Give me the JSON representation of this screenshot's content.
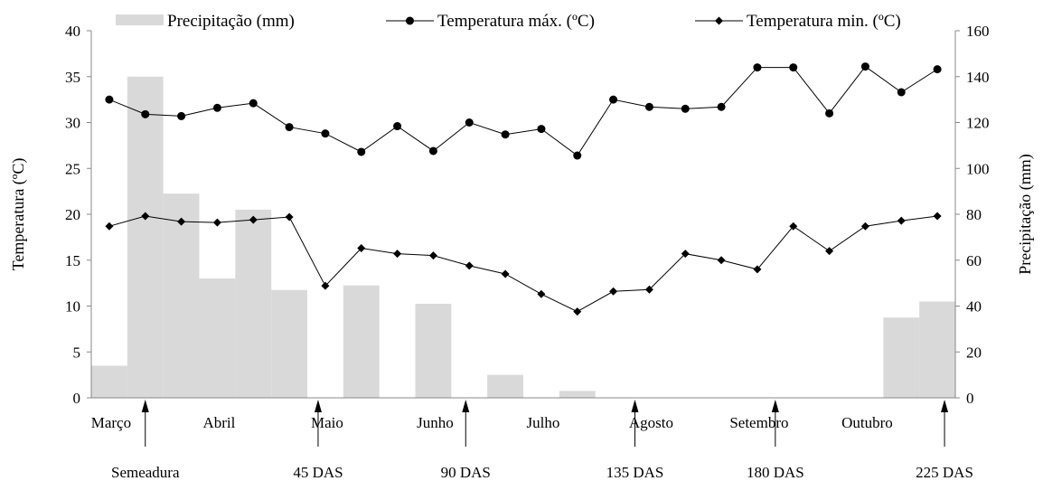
{
  "chart_data": {
    "type": "bar+line",
    "ylabel_left": "Temperatura (ºC)",
    "ylabel_right": "Precipitação (mm)",
    "ylim_left": [
      0,
      40
    ],
    "ylim_right": [
      0,
      160
    ],
    "yticks_left": [
      "0",
      "5",
      "10",
      "15",
      "20",
      "25",
      "30",
      "35",
      "40"
    ],
    "yticks_right": [
      "0",
      "20",
      "40",
      "60",
      "80",
      "100",
      "120",
      "140",
      "160"
    ],
    "month_labels": [
      "Março",
      "Abril",
      "Maio",
      "Junho",
      "Julho",
      "Agosto",
      "Setembro",
      "Outubro"
    ],
    "points": 24,
    "grid": false,
    "legend_position": "top",
    "series": [
      {
        "name": "Precipitação (mm)",
        "type": "bar",
        "axis": "right",
        "color": "#d9d9d9",
        "values": [
          14,
          140,
          89,
          52,
          82,
          47,
          0,
          49,
          0,
          41,
          0,
          10,
          0,
          3,
          0,
          0,
          0,
          0,
          0,
          0,
          0,
          0,
          35,
          42
        ]
      },
      {
        "name": "Temperatura máx. (ºC)",
        "type": "line",
        "axis": "left",
        "marker": "circle",
        "color": "#000000",
        "values": [
          32.5,
          30.9,
          30.7,
          31.6,
          32.1,
          29.5,
          28.8,
          26.8,
          29.6,
          26.9,
          30.0,
          28.7,
          29.3,
          26.4,
          32.5,
          31.7,
          31.5,
          31.7,
          36.0,
          36.0,
          31.0,
          36.1,
          33.3,
          35.8
        ]
      },
      {
        "name": "Temperatura min. (ºC)",
        "type": "line",
        "axis": "left",
        "marker": "diamond",
        "color": "#000000",
        "values": [
          18.7,
          19.8,
          19.2,
          19.1,
          19.4,
          19.7,
          12.2,
          16.3,
          15.7,
          15.5,
          14.4,
          13.5,
          11.3,
          9.4,
          11.6,
          11.8,
          15.7,
          15.0,
          14.0,
          18.7,
          16.0,
          18.7,
          19.3,
          19.8
        ]
      }
    ],
    "annotations": [
      {
        "label": "Semeadura",
        "index": 1
      },
      {
        "label": "45 DAS",
        "index": 5.8
      },
      {
        "label": "90 DAS",
        "index": 9.9
      },
      {
        "label": "135 DAS",
        "index": 14.6
      },
      {
        "label": "180 DAS",
        "index": 18.5
      },
      {
        "label": "225 DAS",
        "index": 23.2
      }
    ]
  }
}
